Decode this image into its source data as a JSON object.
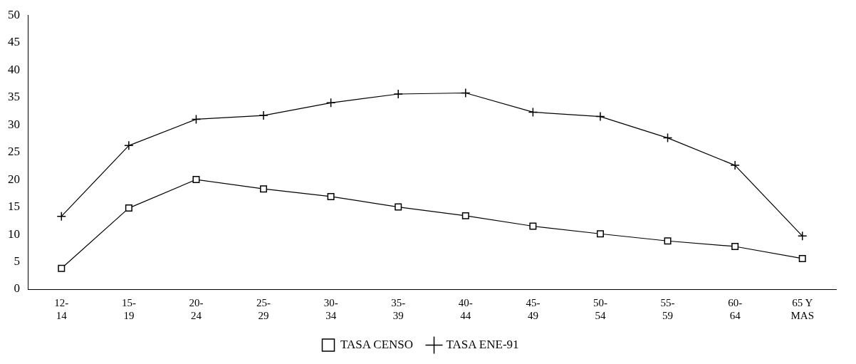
{
  "chart_data": {
    "type": "line",
    "categories": [
      "12-\n14",
      "15-\n19",
      "20-\n24",
      "25-\n29",
      "30-\n34",
      "35-\n39",
      "40-\n44",
      "45-\n49",
      "50-\n54",
      "55-\n59",
      "60-\n64",
      "65 Y\nMAS"
    ],
    "series": [
      {
        "name": "TASA CENSO",
        "color": "#000000",
        "marker": "square",
        "values": [
          3.8,
          14.8,
          20.0,
          18.3,
          16.9,
          15.0,
          13.4,
          11.5,
          10.1,
          8.8,
          7.8,
          5.6
        ]
      },
      {
        "name": "TASA ENE-91",
        "color": "#000000",
        "marker": "cross",
        "values": [
          13.3,
          26.2,
          31.0,
          31.7,
          34.0,
          35.6,
          35.8,
          32.3,
          31.5,
          27.6,
          22.6,
          9.7
        ]
      }
    ],
    "ylim": [
      0,
      50
    ],
    "yticks": [
      0,
      5,
      10,
      15,
      20,
      25,
      30,
      35,
      40,
      45,
      50
    ],
    "grid": false,
    "legend": "bottom",
    "line_style": "solid"
  }
}
